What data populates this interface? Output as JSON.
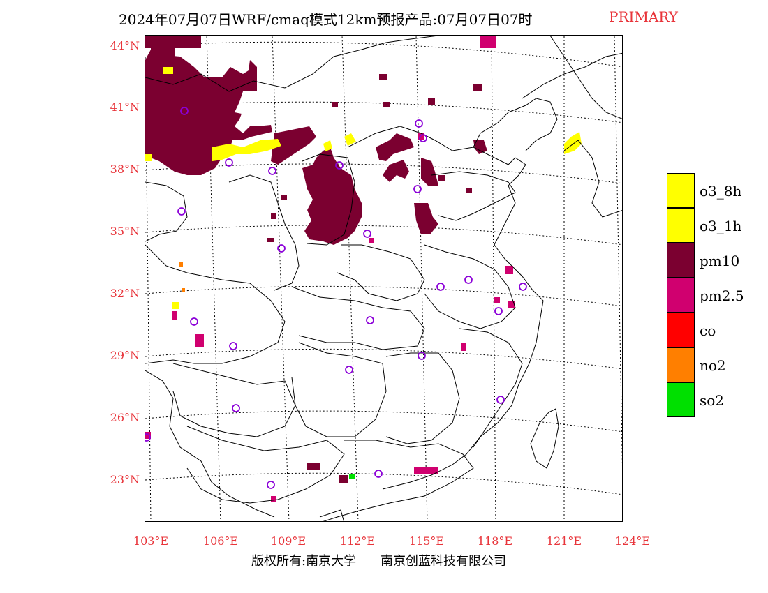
{
  "header": {
    "title": "2024年07月07日WRF/cmaq模式12km预报产品:07月07日07时",
    "tag": "PRIMARY",
    "tag_color": "#e8343a"
  },
  "map": {
    "lat_labels": [
      "44°N",
      "41°N",
      "38°N",
      "35°N",
      "32°N",
      "29°N",
      "26°N",
      "23°N"
    ],
    "lon_labels": [
      "103°E",
      "106°E",
      "109°E",
      "112°E",
      "115°E",
      "118°E",
      "121°E",
      "124°E"
    ],
    "label_color": "#e8343a",
    "colors": {
      "pm10": "#7b0030",
      "o3": "#ffff00",
      "pm25": "#d0006f",
      "no2": "#ff7f00",
      "so2": "#00e000",
      "site_circle": "#8b00d8"
    }
  },
  "legend": {
    "items": [
      {
        "label": "o3_8h",
        "color": "#ffff00"
      },
      {
        "label": "o3_1h",
        "color": "#ffff00"
      },
      {
        "label": "pm10",
        "color": "#7b0030"
      },
      {
        "label": "pm2.5",
        "color": "#d0006f"
      },
      {
        "label": "co",
        "color": "#ff0000"
      },
      {
        "label": "no2",
        "color": "#ff7f00"
      },
      {
        "label": "so2",
        "color": "#00e000"
      }
    ]
  },
  "footer": {
    "left": "版权所有:南京大学",
    "right": "南京创蓝科技有限公司"
  }
}
